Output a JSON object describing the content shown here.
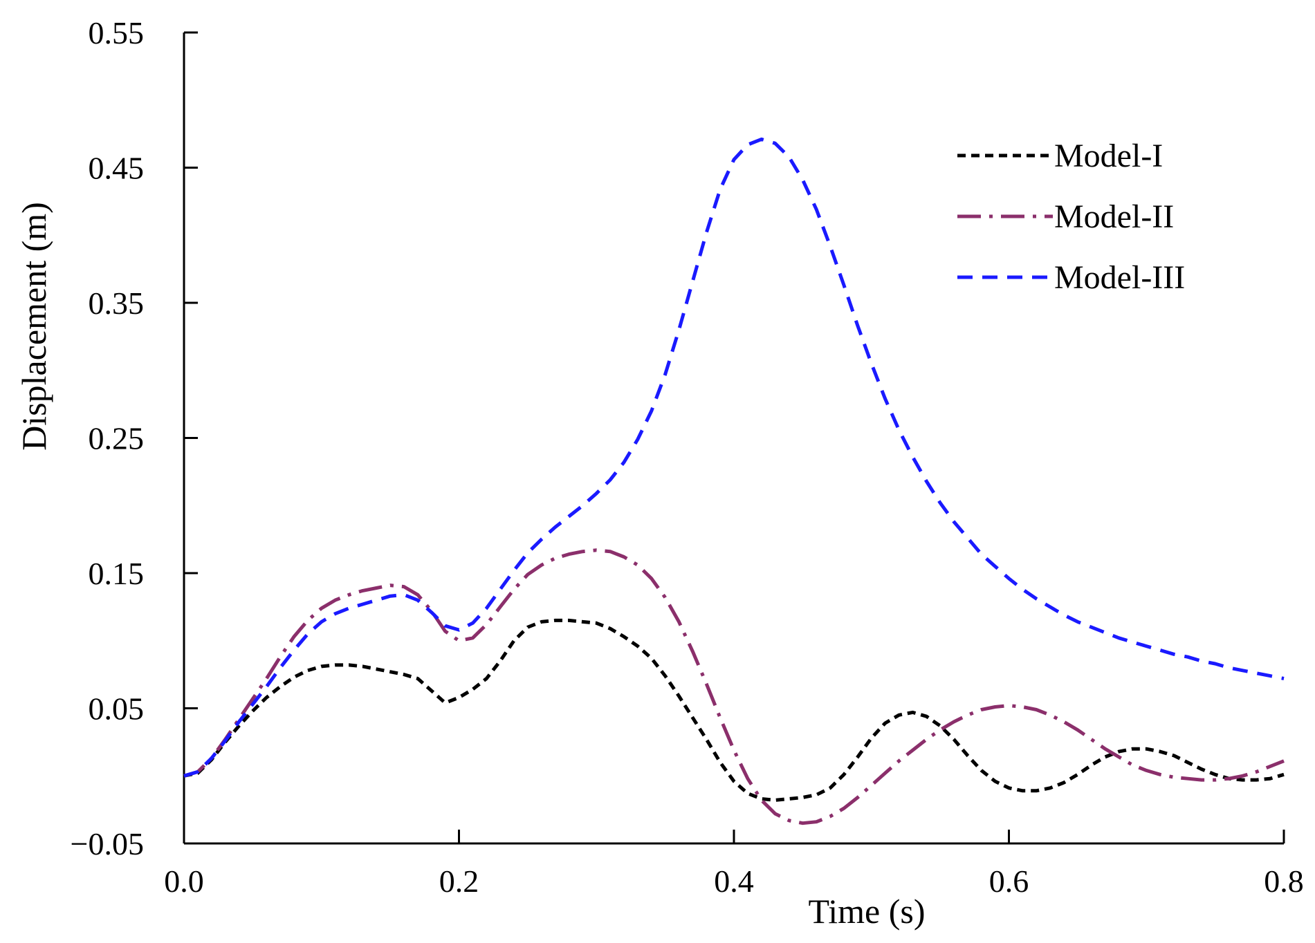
{
  "chart_data": {
    "type": "line",
    "title": "",
    "xlabel": "Time (s)",
    "ylabel": "Displacement (m)",
    "xlim": [
      0.0,
      0.8
    ],
    "ylim": [
      -0.05,
      0.55
    ],
    "x_ticks": [
      0.0,
      0.2,
      0.4,
      0.6,
      0.8
    ],
    "x_tick_labels": [
      "0.0",
      "0.2",
      "0.4",
      "0.6",
      "0.8"
    ],
    "y_ticks": [
      -0.05,
      0.05,
      0.15,
      0.25,
      0.35,
      0.45,
      0.55
    ],
    "y_tick_labels": [
      "−0.05",
      "0.05",
      "0.15",
      "0.25",
      "0.35",
      "0.45",
      "0.55"
    ],
    "grid": false,
    "legend_position": "top-right",
    "series": [
      {
        "name": "Model-I",
        "color": "#000000",
        "style": "dotted",
        "points": [
          [
            0.0,
            0.0
          ],
          [
            0.01,
            0.002
          ],
          [
            0.02,
            0.012
          ],
          [
            0.03,
            0.025
          ],
          [
            0.04,
            0.037
          ],
          [
            0.05,
            0.048
          ],
          [
            0.06,
            0.058
          ],
          [
            0.07,
            0.066
          ],
          [
            0.08,
            0.073
          ],
          [
            0.09,
            0.078
          ],
          [
            0.1,
            0.081
          ],
          [
            0.11,
            0.082
          ],
          [
            0.12,
            0.082
          ],
          [
            0.13,
            0.081
          ],
          [
            0.14,
            0.079
          ],
          [
            0.15,
            0.077
          ],
          [
            0.16,
            0.075
          ],
          [
            0.17,
            0.072
          ],
          [
            0.18,
            0.063
          ],
          [
            0.19,
            0.054
          ],
          [
            0.2,
            0.058
          ],
          [
            0.21,
            0.064
          ],
          [
            0.22,
            0.072
          ],
          [
            0.23,
            0.085
          ],
          [
            0.24,
            0.1
          ],
          [
            0.25,
            0.11
          ],
          [
            0.26,
            0.114
          ],
          [
            0.27,
            0.115
          ],
          [
            0.28,
            0.115
          ],
          [
            0.29,
            0.114
          ],
          [
            0.3,
            0.113
          ],
          [
            0.31,
            0.109
          ],
          [
            0.32,
            0.103
          ],
          [
            0.33,
            0.096
          ],
          [
            0.34,
            0.087
          ],
          [
            0.35,
            0.074
          ],
          [
            0.36,
            0.059
          ],
          [
            0.37,
            0.043
          ],
          [
            0.38,
            0.027
          ],
          [
            0.39,
            0.01
          ],
          [
            0.4,
            -0.004
          ],
          [
            0.41,
            -0.013
          ],
          [
            0.42,
            -0.017
          ],
          [
            0.43,
            -0.018
          ],
          [
            0.44,
            -0.017
          ],
          [
            0.45,
            -0.016
          ],
          [
            0.46,
            -0.014
          ],
          [
            0.47,
            -0.009
          ],
          [
            0.48,
            0.001
          ],
          [
            0.49,
            0.014
          ],
          [
            0.5,
            0.028
          ],
          [
            0.51,
            0.039
          ],
          [
            0.52,
            0.045
          ],
          [
            0.53,
            0.047
          ],
          [
            0.54,
            0.044
          ],
          [
            0.55,
            0.037
          ],
          [
            0.56,
            0.027
          ],
          [
            0.57,
            0.015
          ],
          [
            0.58,
            0.004
          ],
          [
            0.59,
            -0.004
          ],
          [
            0.6,
            -0.009
          ],
          [
            0.61,
            -0.011
          ],
          [
            0.62,
            -0.011
          ],
          [
            0.63,
            -0.009
          ],
          [
            0.64,
            -0.005
          ],
          [
            0.65,
            0.001
          ],
          [
            0.66,
            0.008
          ],
          [
            0.67,
            0.014
          ],
          [
            0.68,
            0.018
          ],
          [
            0.69,
            0.02
          ],
          [
            0.7,
            0.02
          ],
          [
            0.71,
            0.018
          ],
          [
            0.72,
            0.015
          ],
          [
            0.73,
            0.01
          ],
          [
            0.74,
            0.005
          ],
          [
            0.75,
            0.001
          ],
          [
            0.76,
            -0.002
          ],
          [
            0.77,
            -0.003
          ],
          [
            0.78,
            -0.003
          ],
          [
            0.79,
            -0.002
          ],
          [
            0.8,
            0.001
          ]
        ]
      },
      {
        "name": "Model-II",
        "color": "#8b2f6b",
        "style": "dash-dot",
        "points": [
          [
            0.0,
            0.0
          ],
          [
            0.01,
            0.003
          ],
          [
            0.02,
            0.013
          ],
          [
            0.03,
            0.027
          ],
          [
            0.04,
            0.042
          ],
          [
            0.05,
            0.057
          ],
          [
            0.06,
            0.072
          ],
          [
            0.07,
            0.088
          ],
          [
            0.08,
            0.103
          ],
          [
            0.09,
            0.115
          ],
          [
            0.1,
            0.124
          ],
          [
            0.11,
            0.13
          ],
          [
            0.12,
            0.134
          ],
          [
            0.13,
            0.137
          ],
          [
            0.14,
            0.139
          ],
          [
            0.15,
            0.141
          ],
          [
            0.16,
            0.14
          ],
          [
            0.17,
            0.134
          ],
          [
            0.18,
            0.122
          ],
          [
            0.19,
            0.107
          ],
          [
            0.2,
            0.1
          ],
          [
            0.21,
            0.102
          ],
          [
            0.22,
            0.112
          ],
          [
            0.23,
            0.125
          ],
          [
            0.24,
            0.138
          ],
          [
            0.25,
            0.149
          ],
          [
            0.26,
            0.156
          ],
          [
            0.27,
            0.161
          ],
          [
            0.28,
            0.164
          ],
          [
            0.29,
            0.166
          ],
          [
            0.3,
            0.167
          ],
          [
            0.31,
            0.166
          ],
          [
            0.32,
            0.162
          ],
          [
            0.33,
            0.156
          ],
          [
            0.34,
            0.146
          ],
          [
            0.35,
            0.132
          ],
          [
            0.36,
            0.114
          ],
          [
            0.37,
            0.092
          ],
          [
            0.38,
            0.068
          ],
          [
            0.39,
            0.043
          ],
          [
            0.4,
            0.019
          ],
          [
            0.41,
            -0.002
          ],
          [
            0.42,
            -0.018
          ],
          [
            0.43,
            -0.028
          ],
          [
            0.44,
            -0.033
          ],
          [
            0.45,
            -0.035
          ],
          [
            0.46,
            -0.034
          ],
          [
            0.47,
            -0.03
          ],
          [
            0.48,
            -0.024
          ],
          [
            0.49,
            -0.016
          ],
          [
            0.5,
            -0.007
          ],
          [
            0.51,
            0.002
          ],
          [
            0.52,
            0.011
          ],
          [
            0.53,
            0.019
          ],
          [
            0.54,
            0.027
          ],
          [
            0.55,
            0.034
          ],
          [
            0.56,
            0.04
          ],
          [
            0.57,
            0.045
          ],
          [
            0.58,
            0.049
          ],
          [
            0.59,
            0.051
          ],
          [
            0.6,
            0.052
          ],
          [
            0.61,
            0.051
          ],
          [
            0.62,
            0.049
          ],
          [
            0.63,
            0.045
          ],
          [
            0.64,
            0.04
          ],
          [
            0.65,
            0.034
          ],
          [
            0.66,
            0.027
          ],
          [
            0.67,
            0.02
          ],
          [
            0.68,
            0.014
          ],
          [
            0.69,
            0.008
          ],
          [
            0.7,
            0.004
          ],
          [
            0.71,
            0.001
          ],
          [
            0.72,
            -0.001
          ],
          [
            0.73,
            -0.002
          ],
          [
            0.74,
            -0.003
          ],
          [
            0.75,
            -0.003
          ],
          [
            0.76,
            -0.002
          ],
          [
            0.77,
            0.0
          ],
          [
            0.78,
            0.003
          ],
          [
            0.79,
            0.007
          ],
          [
            0.8,
            0.011
          ]
        ]
      },
      {
        "name": "Model-III",
        "color": "#1a1aff",
        "style": "dashed",
        "points": [
          [
            0.0,
            0.0
          ],
          [
            0.01,
            0.003
          ],
          [
            0.02,
            0.013
          ],
          [
            0.03,
            0.026
          ],
          [
            0.04,
            0.04
          ],
          [
            0.05,
            0.053
          ],
          [
            0.06,
            0.066
          ],
          [
            0.07,
            0.08
          ],
          [
            0.08,
            0.093
          ],
          [
            0.09,
            0.105
          ],
          [
            0.1,
            0.114
          ],
          [
            0.11,
            0.12
          ],
          [
            0.12,
            0.124
          ],
          [
            0.13,
            0.127
          ],
          [
            0.14,
            0.13
          ],
          [
            0.15,
            0.133
          ],
          [
            0.16,
            0.134
          ],
          [
            0.17,
            0.13
          ],
          [
            0.18,
            0.121
          ],
          [
            0.19,
            0.111
          ],
          [
            0.2,
            0.108
          ],
          [
            0.21,
            0.113
          ],
          [
            0.22,
            0.124
          ],
          [
            0.23,
            0.138
          ],
          [
            0.24,
            0.152
          ],
          [
            0.25,
            0.165
          ],
          [
            0.26,
            0.175
          ],
          [
            0.27,
            0.184
          ],
          [
            0.28,
            0.192
          ],
          [
            0.29,
            0.2
          ],
          [
            0.3,
            0.209
          ],
          [
            0.31,
            0.219
          ],
          [
            0.32,
            0.232
          ],
          [
            0.33,
            0.249
          ],
          [
            0.34,
            0.27
          ],
          [
            0.35,
            0.297
          ],
          [
            0.36,
            0.33
          ],
          [
            0.37,
            0.366
          ],
          [
            0.38,
            0.402
          ],
          [
            0.39,
            0.434
          ],
          [
            0.4,
            0.456
          ],
          [
            0.41,
            0.467
          ],
          [
            0.42,
            0.471
          ],
          [
            0.43,
            0.468
          ],
          [
            0.44,
            0.458
          ],
          [
            0.45,
            0.441
          ],
          [
            0.46,
            0.419
          ],
          [
            0.47,
            0.392
          ],
          [
            0.48,
            0.363
          ],
          [
            0.49,
            0.333
          ],
          [
            0.5,
            0.305
          ],
          [
            0.51,
            0.279
          ],
          [
            0.52,
            0.256
          ],
          [
            0.53,
            0.236
          ],
          [
            0.54,
            0.218
          ],
          [
            0.55,
            0.202
          ],
          [
            0.56,
            0.188
          ],
          [
            0.57,
            0.176
          ],
          [
            0.58,
            0.164
          ],
          [
            0.59,
            0.155
          ],
          [
            0.6,
            0.146
          ],
          [
            0.61,
            0.138
          ],
          [
            0.62,
            0.131
          ],
          [
            0.63,
            0.125
          ],
          [
            0.64,
            0.119
          ],
          [
            0.65,
            0.114
          ],
          [
            0.66,
            0.11
          ],
          [
            0.67,
            0.106
          ],
          [
            0.68,
            0.102
          ],
          [
            0.69,
            0.099
          ],
          [
            0.7,
            0.096
          ],
          [
            0.71,
            0.093
          ],
          [
            0.72,
            0.09
          ],
          [
            0.73,
            0.088
          ],
          [
            0.74,
            0.085
          ],
          [
            0.75,
            0.083
          ],
          [
            0.76,
            0.08
          ],
          [
            0.77,
            0.078
          ],
          [
            0.78,
            0.076
          ],
          [
            0.79,
            0.074
          ],
          [
            0.8,
            0.072
          ]
        ]
      }
    ]
  }
}
